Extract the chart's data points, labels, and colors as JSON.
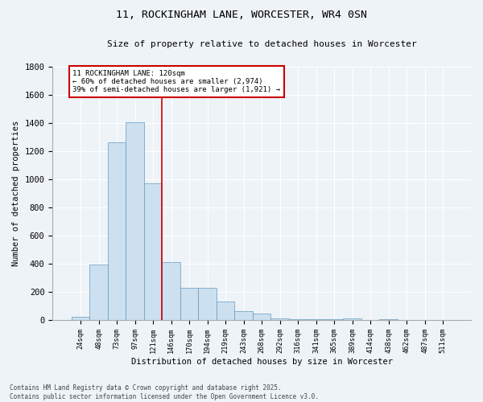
{
  "title": "11, ROCKINGHAM LANE, WORCESTER, WR4 0SN",
  "subtitle": "Size of property relative to detached houses in Worcester",
  "xlabel": "Distribution of detached houses by size in Worcester",
  "ylabel": "Number of detached properties",
  "bar_color": "#cce0f0",
  "bar_edge_color": "#6699bb",
  "background_color": "#eef3f8",
  "categories": [
    "24sqm",
    "48sqm",
    "73sqm",
    "97sqm",
    "121sqm",
    "146sqm",
    "170sqm",
    "194sqm",
    "219sqm",
    "243sqm",
    "268sqm",
    "292sqm",
    "316sqm",
    "341sqm",
    "365sqm",
    "389sqm",
    "414sqm",
    "438sqm",
    "462sqm",
    "487sqm",
    "511sqm"
  ],
  "values": [
    25,
    395,
    1265,
    1405,
    970,
    415,
    230,
    230,
    130,
    65,
    45,
    15,
    5,
    5,
    5,
    10,
    3,
    8,
    2,
    2,
    2
  ],
  "vline_x": 4.5,
  "vline_color": "#cc0000",
  "annotation_title": "11 ROCKINGHAM LANE: 120sqm",
  "annotation_line1": "← 60% of detached houses are smaller (2,974)",
  "annotation_line2": "39% of semi-detached houses are larger (1,921) →",
  "annotation_box_color": "#cc0000",
  "ylim": [
    0,
    1800
  ],
  "yticks": [
    0,
    200,
    400,
    600,
    800,
    1000,
    1200,
    1400,
    1600,
    1800
  ],
  "footnote1": "Contains HM Land Registry data © Crown copyright and database right 2025.",
  "footnote2": "Contains public sector information licensed under the Open Government Licence v3.0."
}
